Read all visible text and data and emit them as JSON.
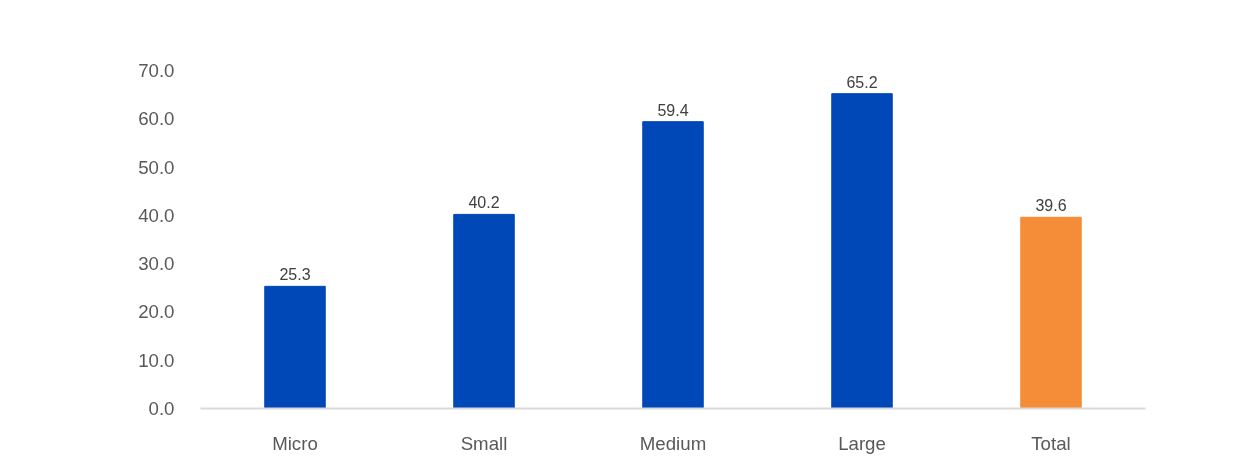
{
  "chart_data": {
    "type": "bar",
    "categories": [
      "Micro",
      "Small",
      "Medium",
      "Large",
      "Total"
    ],
    "values": [
      25.3,
      40.2,
      59.4,
      65.2,
      39.6
    ],
    "colors": [
      "#0047b8",
      "#0047b8",
      "#0047b8",
      "#0047b8",
      "#f58c37"
    ],
    "ylim": [
      0,
      70
    ],
    "yticks": [
      {
        "value": 0,
        "label": "0.0"
      },
      {
        "value": 10,
        "label": "10.0"
      },
      {
        "value": 20,
        "label": "20.0"
      },
      {
        "value": 30,
        "label": "30.0"
      },
      {
        "value": 40,
        "label": "40.0"
      },
      {
        "value": 50,
        "label": "50.0"
      },
      {
        "value": 60,
        "label": "60.0"
      },
      {
        "value": 70,
        "label": "70.0"
      }
    ],
    "data_labels": true
  }
}
